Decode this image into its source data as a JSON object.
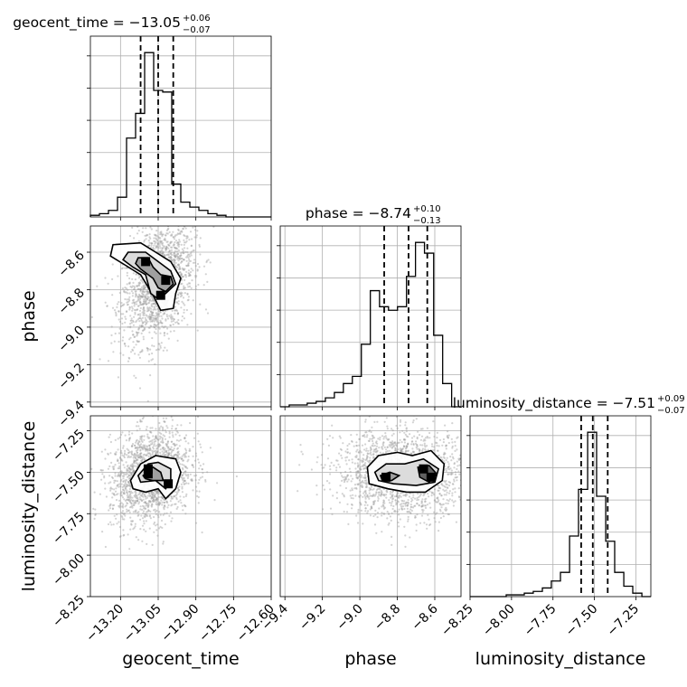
{
  "chart_data": {
    "type": "corner",
    "grid": true,
    "parameters": [
      "geocent_time",
      "phase",
      "luminosity_distance"
    ],
    "titles": [
      {
        "text": "geocent_time = −13.05",
        "plus": "+0.06",
        "minus": "−0.07"
      },
      {
        "text": "phase = −8.74",
        "plus": "+0.10",
        "minus": "−0.13"
      },
      {
        "text": "luminosity_distance = −7.51",
        "plus": "+0.09",
        "minus": "−0.07"
      }
    ],
    "axes": {
      "geocent_time": {
        "label": "geocent_time",
        "range": [
          -13.32,
          -12.6
        ],
        "ticks": [
          -13.2,
          -13.05,
          -12.9,
          -12.75,
          -12.6
        ],
        "tick_labels": [
          "−13.20",
          "−13.05",
          "−12.90",
          "−12.75",
          "−12.60"
        ]
      },
      "phase": {
        "label": "phase",
        "range": [
          -9.425,
          -8.46
        ],
        "ticks": [
          -9.4,
          -9.2,
          -9.0,
          -8.8,
          -8.6
        ],
        "tick_labels": [
          "−9.4",
          "−9.2",
          "−9.0",
          "−8.8",
          "−8.6"
        ]
      },
      "luminosity_distance": {
        "label": "luminosity_distance",
        "range": [
          -8.25,
          -7.16
        ],
        "ticks": [
          -8.25,
          -8.0,
          -7.75,
          -7.5,
          -7.25
        ],
        "tick_labels": [
          "−8.25",
          "−8.00",
          "−7.75",
          "−7.50",
          "−7.25"
        ]
      }
    },
    "histograms": [
      {
        "parameter": "geocent_time",
        "bin_edges": [
          -13.32,
          -13.284,
          -13.248,
          -13.212,
          -13.176,
          -13.14,
          -13.104,
          -13.068,
          -13.032,
          -12.996,
          -12.96,
          -12.924,
          -12.888,
          -12.852,
          -12.816,
          -12.78,
          -12.744,
          -12.708,
          -12.672,
          -12.636,
          -12.6
        ],
        "counts": [
          1,
          2,
          4,
          12,
          48,
          63,
          100,
          77,
          76,
          20,
          9,
          6,
          4,
          2,
          1,
          0,
          0,
          0,
          0,
          0
        ],
        "quantiles": [
          -13.12,
          -13.05,
          -12.99
        ]
      },
      {
        "parameter": "phase",
        "bin_edges": [
          -9.425,
          -9.377,
          -9.329,
          -9.281,
          -9.233,
          -9.184,
          -9.136,
          -9.088,
          -9.04,
          -8.992,
          -8.944,
          -8.895,
          -8.847,
          -8.799,
          -8.751,
          -8.703,
          -8.655,
          -8.606,
          -8.558,
          -8.51,
          -8.46
        ],
        "counts": [
          0,
          1,
          1,
          2,
          3,
          5,
          8,
          13,
          17,
          35,
          65,
          56,
          54,
          56,
          73,
          92,
          86,
          40,
          13,
          0
        ],
        "quantiles": [
          -8.87,
          -8.74,
          -8.64
        ]
      },
      {
        "parameter": "luminosity_distance",
        "bin_edges": [
          -8.25,
          -8.196,
          -8.141,
          -8.087,
          -8.032,
          -7.978,
          -7.923,
          -7.869,
          -7.814,
          -7.76,
          -7.705,
          -7.65,
          -7.596,
          -7.541,
          -7.487,
          -7.432,
          -7.378,
          -7.323,
          -7.269,
          -7.214,
          -7.16
        ],
        "counts": [
          0,
          0,
          0,
          0,
          1,
          1,
          2,
          3,
          5,
          9,
          14,
          35,
          62,
          95,
          58,
          32,
          14,
          6,
          2,
          0
        ],
        "quantiles": [
          -7.58,
          -7.51,
          -7.42
        ]
      }
    ],
    "density_panels": [
      {
        "x": "geocent_time",
        "y": "phase",
        "samples": {
          "mean": [
            -13.05,
            -8.76
          ],
          "sd": [
            0.07,
            0.16
          ],
          "corr": 0.35
        },
        "contours": [
          [
            [
              -13.23,
              -8.56
            ],
            [
              -13.12,
              -8.55
            ],
            [
              -13.06,
              -8.6
            ],
            [
              -13.0,
              -8.65
            ],
            [
              -12.96,
              -8.74
            ],
            [
              -12.98,
              -8.82
            ],
            [
              -12.99,
              -8.9
            ],
            [
              -13.04,
              -8.91
            ],
            [
              -13.07,
              -8.83
            ],
            [
              -13.12,
              -8.72
            ],
            [
              -13.18,
              -8.67
            ],
            [
              -13.24,
              -8.62
            ]
          ],
          [
            [
              -13.17,
              -8.6
            ],
            [
              -13.1,
              -8.6
            ],
            [
              -13.05,
              -8.65
            ],
            [
              -13.0,
              -8.7
            ],
            [
              -12.98,
              -8.77
            ],
            [
              -13.02,
              -8.82
            ],
            [
              -13.05,
              -8.85
            ],
            [
              -13.08,
              -8.82
            ],
            [
              -13.1,
              -8.72
            ],
            [
              -13.15,
              -8.68
            ],
            [
              -13.19,
              -8.64
            ]
          ],
          [
            [
              -13.13,
              -8.63
            ],
            [
              -13.09,
              -8.63
            ],
            [
              -13.07,
              -8.68
            ],
            [
              -13.04,
              -8.72
            ],
            [
              -13.0,
              -8.73
            ],
            [
              -12.99,
              -8.77
            ],
            [
              -13.02,
              -8.81
            ],
            [
              -13.05,
              -8.79
            ],
            [
              -13.07,
              -8.74
            ],
            [
              -13.12,
              -8.69
            ],
            [
              -13.14,
              -8.66
            ]
          ]
        ],
        "peaks": [
          [
            -13.1,
            -8.65
          ],
          [
            -13.02,
            -8.75
          ],
          [
            -13.04,
            -8.83
          ]
        ]
      },
      {
        "x": "geocent_time",
        "y": "luminosity_distance",
        "samples": {
          "mean": [
            -13.08,
            -7.52
          ],
          "sd": [
            0.08,
            0.14
          ],
          "corr": 0.2
        },
        "contours": [
          [
            [
              -13.16,
              -7.55
            ],
            [
              -13.12,
              -7.45
            ],
            [
              -13.06,
              -7.4
            ],
            [
              -12.98,
              -7.42
            ],
            [
              -12.96,
              -7.5
            ],
            [
              -12.98,
              -7.6
            ],
            [
              -13.02,
              -7.66
            ],
            [
              -13.05,
              -7.6
            ],
            [
              -13.1,
              -7.62
            ],
            [
              -13.15,
              -7.6
            ]
          ],
          [
            [
              -13.13,
              -7.52
            ],
            [
              -13.09,
              -7.45
            ],
            [
              -13.05,
              -7.44
            ],
            [
              -13.0,
              -7.48
            ],
            [
              -13.0,
              -7.55
            ],
            [
              -13.02,
              -7.6
            ],
            [
              -13.06,
              -7.55
            ],
            [
              -13.12,
              -7.56
            ]
          ],
          [
            [
              -13.11,
              -7.52
            ],
            [
              -13.07,
              -7.47
            ],
            [
              -13.04,
              -7.5
            ],
            [
              -13.03,
              -7.55
            ],
            [
              -13.07,
              -7.55
            ],
            [
              -13.1,
              -7.54
            ]
          ]
        ],
        "peaks": [
          [
            -13.09,
            -7.48
          ],
          [
            -13.09,
            -7.51
          ],
          [
            -13.01,
            -7.57
          ]
        ]
      },
      {
        "x": "phase",
        "y": "luminosity_distance",
        "samples": {
          "mean": [
            -8.77,
            -7.51
          ],
          "sd": [
            0.18,
            0.13
          ],
          "corr": -0.05
        },
        "contours": [
          [
            [
              -8.96,
              -7.47
            ],
            [
              -8.9,
              -7.4
            ],
            [
              -8.8,
              -7.38
            ],
            [
              -8.72,
              -7.4
            ],
            [
              -8.62,
              -7.37
            ],
            [
              -8.55,
              -7.45
            ],
            [
              -8.56,
              -7.55
            ],
            [
              -8.65,
              -7.62
            ],
            [
              -8.75,
              -7.62
            ],
            [
              -8.85,
              -7.6
            ],
            [
              -8.95,
              -7.57
            ]
          ],
          [
            [
              -8.92,
              -7.5
            ],
            [
              -8.86,
              -7.45
            ],
            [
              -8.76,
              -7.45
            ],
            [
              -8.66,
              -7.42
            ],
            [
              -8.58,
              -7.48
            ],
            [
              -8.6,
              -7.56
            ],
            [
              -8.7,
              -7.58
            ],
            [
              -8.82,
              -7.57
            ],
            [
              -8.9,
              -7.55
            ]
          ],
          [
            [
              -8.89,
              -7.52
            ],
            [
              -8.84,
              -7.5
            ],
            [
              -8.79,
              -7.52
            ],
            [
              -8.83,
              -7.55
            ],
            [
              -8.88,
              -7.55
            ]
          ],
          [
            [
              -8.69,
              -7.47
            ],
            [
              -8.63,
              -7.46
            ],
            [
              -8.59,
              -7.51
            ],
            [
              -8.63,
              -7.56
            ],
            [
              -8.68,
              -7.53
            ]
          ]
        ],
        "peaks": [
          [
            -8.86,
            -7.53
          ],
          [
            -8.66,
            -7.48
          ],
          [
            -8.62,
            -7.53
          ]
        ]
      }
    ],
    "colors": {
      "line": "#000000",
      "scatter": "#9e9e9e",
      "grid": "#b0b0b0"
    }
  }
}
